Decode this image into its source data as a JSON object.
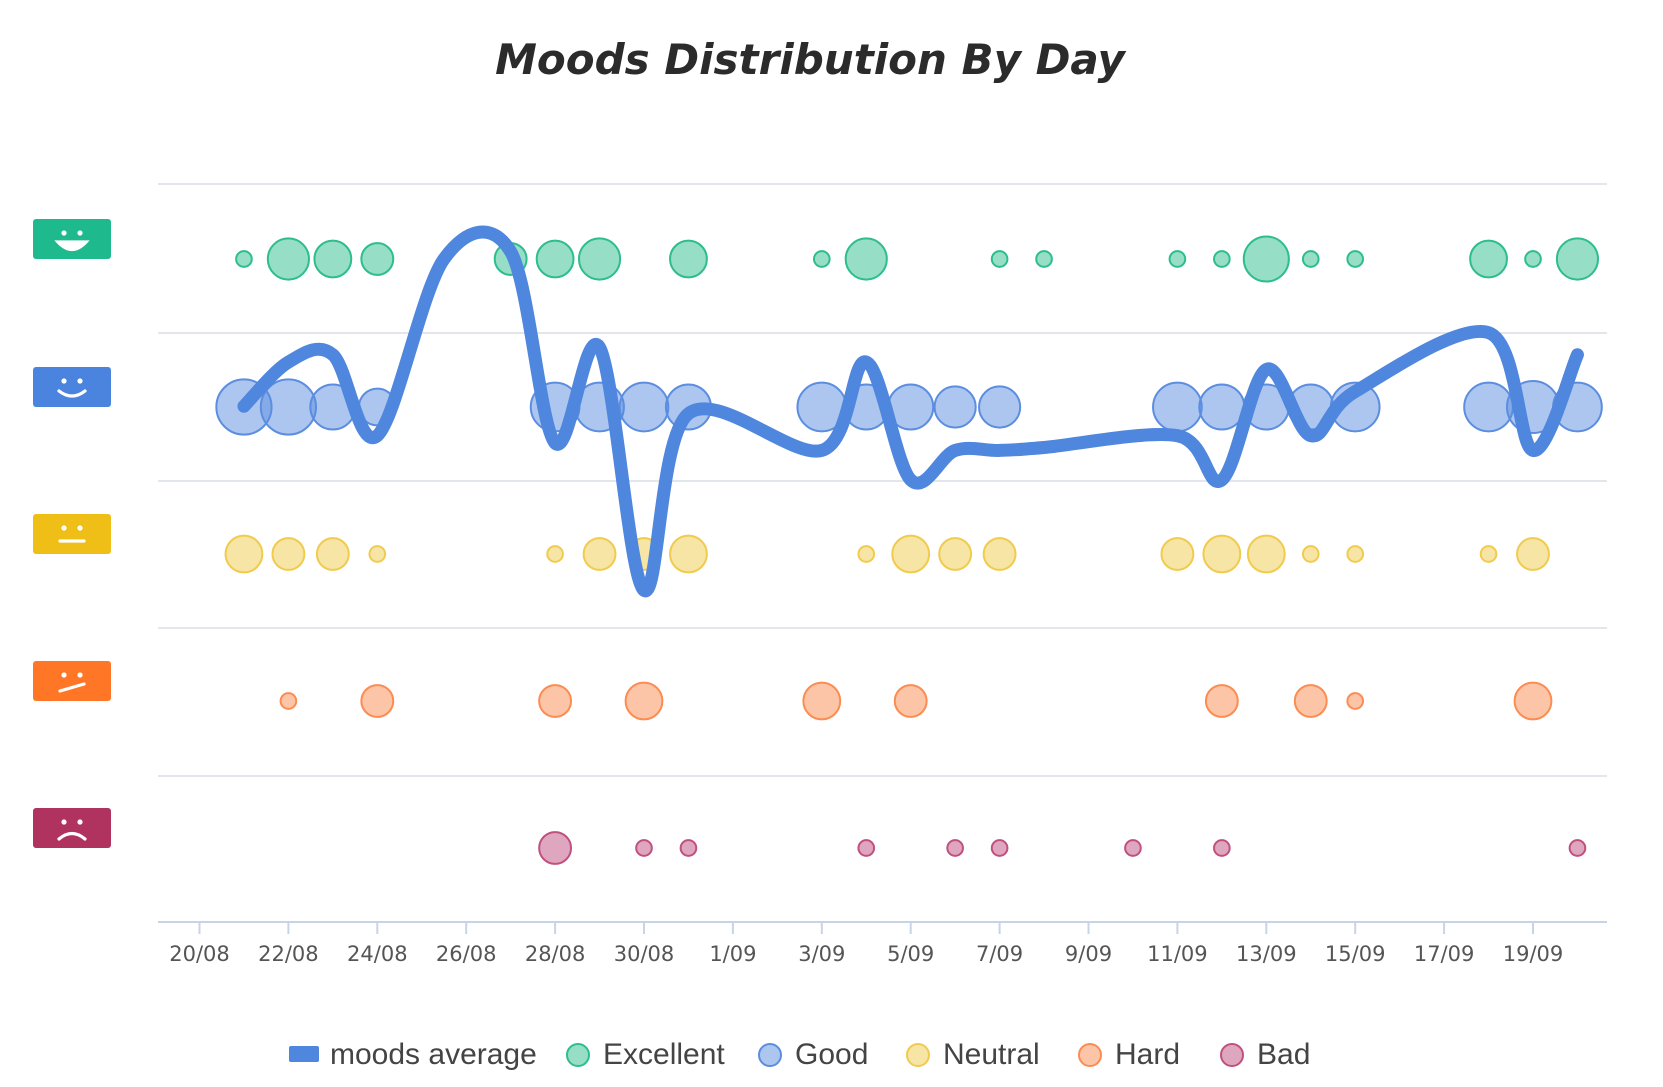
{
  "chart_data": {
    "type": "scatter",
    "title": "Moods Distribution By Day",
    "xlabel": "",
    "ylabel": "",
    "x_tick_labels": [
      "20/08",
      "22/08",
      "24/08",
      "26/08",
      "28/08",
      "30/08",
      "1/09",
      "3/09",
      "5/09",
      "7/09",
      "9/09",
      "11/09",
      "13/09",
      "15/09",
      "17/09",
      "19/09"
    ],
    "x_range_days": [
      -0.9,
      31.6
    ],
    "grid": "horizontal",
    "legend_position": "bottom",
    "rows": [
      {
        "name": "Excellent",
        "icon": "smiley-excellent-icon",
        "color": "#2dbd8e",
        "badge": "#1eb98c"
      },
      {
        "name": "Good",
        "icon": "smiley-good-icon",
        "color": "#5b8de0",
        "badge": "#4a84de"
      },
      {
        "name": "Neutral",
        "icon": "smiley-neutral-icon",
        "color": "#f0cb4d",
        "badge": "#efbe17"
      },
      {
        "name": "Hard",
        "icon": "smiley-hard-icon",
        "color": "#fb8c52",
        "badge": "#ff7726"
      },
      {
        "name": "Bad",
        "icon": "smiley-bad-icon",
        "color": "#c0507f",
        "badge": "#b0335f"
      }
    ],
    "series": [
      {
        "name": "Excellent",
        "points": [
          [
            1,
            1
          ],
          [
            2,
            5
          ],
          [
            3,
            4
          ],
          [
            4,
            3
          ],
          [
            7,
            3
          ],
          [
            8,
            4
          ],
          [
            9,
            5
          ],
          [
            11,
            4
          ],
          [
            14,
            1
          ],
          [
            15,
            5
          ],
          [
            18,
            1
          ],
          [
            19,
            1
          ],
          [
            22,
            1
          ],
          [
            23,
            1
          ],
          [
            24,
            6
          ],
          [
            25,
            1
          ],
          [
            26,
            1
          ],
          [
            29,
            4
          ],
          [
            30,
            1
          ],
          [
            31,
            5
          ]
        ]
      },
      {
        "name": "Good",
        "points": [
          [
            1,
            9
          ],
          [
            2,
            9
          ],
          [
            3,
            6
          ],
          [
            4,
            4
          ],
          [
            8,
            7
          ],
          [
            9,
            7
          ],
          [
            10,
            7
          ],
          [
            11,
            6
          ],
          [
            14,
            7
          ],
          [
            15,
            6
          ],
          [
            16,
            6
          ],
          [
            17,
            5
          ],
          [
            18,
            5
          ],
          [
            22,
            7
          ],
          [
            23,
            6
          ],
          [
            24,
            6
          ],
          [
            25,
            6
          ],
          [
            26,
            7
          ],
          [
            29,
            7
          ],
          [
            30,
            8
          ],
          [
            31,
            7
          ]
        ]
      },
      {
        "name": "Neutral",
        "points": [
          [
            1,
            4
          ],
          [
            2,
            3
          ],
          [
            3,
            3
          ],
          [
            4,
            1
          ],
          [
            8,
            1
          ],
          [
            9,
            3
          ],
          [
            10,
            3
          ],
          [
            11,
            4
          ],
          [
            15,
            1
          ],
          [
            16,
            4
          ],
          [
            17,
            3
          ],
          [
            18,
            3
          ],
          [
            22,
            3
          ],
          [
            23,
            4
          ],
          [
            24,
            4
          ],
          [
            25,
            1
          ],
          [
            26,
            1
          ],
          [
            29,
            1
          ],
          [
            30,
            3
          ]
        ]
      },
      {
        "name": "Hard",
        "points": [
          [
            2,
            1
          ],
          [
            4,
            3
          ],
          [
            8,
            3
          ],
          [
            10,
            4
          ],
          [
            14,
            4
          ],
          [
            16,
            3
          ],
          [
            23,
            3
          ],
          [
            25,
            3
          ],
          [
            26,
            1
          ],
          [
            30,
            4
          ]
        ]
      },
      {
        "name": "Bad",
        "points": [
          [
            8,
            3
          ],
          [
            10,
            1
          ],
          [
            11,
            1
          ],
          [
            15,
            1
          ],
          [
            17,
            1
          ],
          [
            18,
            1
          ],
          [
            21,
            1
          ],
          [
            23,
            1
          ],
          [
            31,
            1
          ]
        ]
      }
    ],
    "moods_average": {
      "name": "moods average",
      "color": "#4f86de",
      "points": [
        [
          1,
          4.0
        ],
        [
          2,
          4.3
        ],
        [
          3,
          4.35
        ],
        [
          4,
          3.8
        ],
        [
          5.5,
          5.0
        ],
        [
          7,
          5.05
        ],
        [
          8,
          3.75
        ],
        [
          9,
          4.4
        ],
        [
          10,
          2.75
        ],
        [
          11,
          3.95
        ],
        [
          14,
          3.7
        ],
        [
          15,
          4.3
        ],
        [
          16,
          3.5
        ],
        [
          17,
          3.7
        ],
        [
          18,
          3.7
        ],
        [
          19,
          3.72
        ],
        [
          22,
          3.8
        ],
        [
          23,
          3.5
        ],
        [
          24,
          4.25
        ],
        [
          25,
          3.8
        ],
        [
          26,
          4.1
        ],
        [
          29,
          4.5
        ],
        [
          30,
          3.7
        ],
        [
          31,
          4.35
        ]
      ]
    }
  },
  "legend": {
    "average_label": "moods average",
    "items": [
      "Excellent",
      "Good",
      "Neutral",
      "Hard",
      "Bad"
    ]
  }
}
